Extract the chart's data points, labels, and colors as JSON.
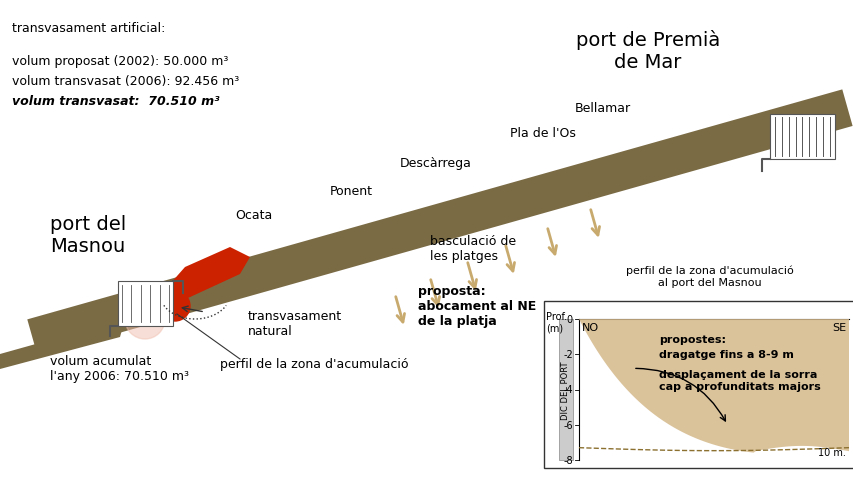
{
  "bg_color": "#ffffff",
  "beach_color": "#7a6b45",
  "beach_light": "#c8aa6e",
  "red_color": "#cc2200",
  "arrow_color": "#c8aa6e",
  "sand_color": "#d4b88a",
  "dashed_color": "#8B7030",
  "gray_color": "#aaaaaa",
  "shore_p1": [
    0.04,
    0.595
  ],
  "shore_p2": [
    0.975,
    0.165
  ],
  "shore_thickness_upper": 0.055,
  "shore_thickness_lower": 0.018
}
